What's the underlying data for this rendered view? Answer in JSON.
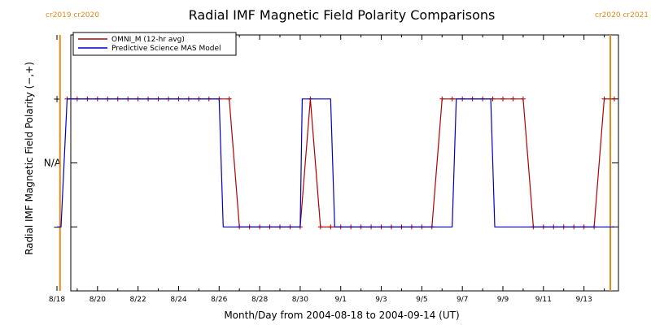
{
  "chart_data": {
    "type": "line",
    "title": "Radial IMF Magnetic Field Polarity Comparisons",
    "xlabel": "Month/Day from 2004-08-18 to 2004-09-14 (UT)",
    "ylabel": "Radial IMF Magnetic Field Polarity (−,+)",
    "x_ticks": [
      "8/18",
      "8/20",
      "8/22",
      "8/24",
      "8/26",
      "8/28",
      "8/30",
      "9/1",
      "9/3",
      "9/5",
      "9/7",
      "9/9",
      "9/11",
      "9/13"
    ],
    "xlim_days": [
      0,
      27.5
    ],
    "y_ticks": [
      "+",
      "N/A",
      "−"
    ],
    "ylim": [
      -1,
      1
    ],
    "y_tick_values": [
      0.5,
      0,
      -0.5
    ],
    "carrington_markers": [
      {
        "day": 0.15,
        "label": "cr2019 cr2020",
        "side": "left"
      },
      {
        "day": 27.3,
        "label": "cr2020 cr2021",
        "side": "right"
      }
    ],
    "legend": {
      "position": "top-left"
    },
    "series": [
      {
        "name": "OMNI_M (12-hr avg)",
        "color": "#b00000",
        "marker": "+",
        "points": [
          [
            0.5,
            0.5
          ],
          [
            1.0,
            0.5
          ],
          [
            1.5,
            0.5
          ],
          [
            2.0,
            0.5
          ],
          [
            2.5,
            0.5
          ],
          [
            3.0,
            0.5
          ],
          [
            3.5,
            0.5
          ],
          [
            4.0,
            0.5
          ],
          [
            4.5,
            0.5
          ],
          [
            5.0,
            0.5
          ],
          [
            5.5,
            0.5
          ],
          [
            6.0,
            0.5
          ],
          [
            6.5,
            0.5
          ],
          [
            7.0,
            0.5
          ],
          [
            7.5,
            0.5
          ],
          [
            8.0,
            0.5
          ],
          [
            8.5,
            0.5
          ],
          [
            9.0,
            -0.5
          ],
          [
            9.5,
            -0.5
          ],
          [
            10.0,
            -0.5
          ],
          [
            10.5,
            -0.5
          ],
          [
            11.0,
            -0.5
          ],
          [
            11.5,
            -0.5
          ],
          [
            12.0,
            -0.5
          ],
          [
            12.5,
            0.5
          ],
          [
            13.0,
            -0.5
          ],
          [
            13.5,
            -0.5
          ],
          [
            14.0,
            -0.5
          ],
          [
            14.5,
            -0.5
          ],
          [
            15.0,
            -0.5
          ],
          [
            15.5,
            -0.5
          ],
          [
            16.0,
            -0.5
          ],
          [
            16.5,
            -0.5
          ],
          [
            17.0,
            -0.5
          ],
          [
            17.5,
            -0.5
          ],
          [
            18.0,
            -0.5
          ],
          [
            18.5,
            -0.5
          ],
          [
            19.0,
            0.5
          ],
          [
            19.5,
            0.5
          ],
          [
            20.0,
            0.5
          ],
          [
            20.5,
            0.5
          ],
          [
            21.0,
            0.5
          ],
          [
            21.5,
            0.5
          ],
          [
            22.0,
            0.5
          ],
          [
            22.5,
            0.5
          ],
          [
            23.0,
            0.5
          ],
          [
            23.5,
            -0.5
          ],
          [
            24.0,
            -0.5
          ],
          [
            24.5,
            -0.5
          ],
          [
            25.0,
            -0.5
          ],
          [
            25.5,
            -0.5
          ],
          [
            26.0,
            -0.5
          ],
          [
            26.5,
            -0.5
          ],
          [
            27.0,
            0.5
          ],
          [
            27.5,
            0.5
          ]
        ]
      },
      {
        "name": "Predictive Science MAS Model",
        "color": "#0000c0",
        "marker": "none",
        "points": [
          [
            0.0,
            -0.5
          ],
          [
            0.2,
            -0.5
          ],
          [
            0.5,
            0.5
          ],
          [
            8.0,
            0.5
          ],
          [
            8.2,
            -0.5
          ],
          [
            12.0,
            -0.5
          ],
          [
            12.1,
            0.5
          ],
          [
            13.5,
            0.5
          ],
          [
            13.7,
            -0.5
          ],
          [
            19.5,
            -0.5
          ],
          [
            19.7,
            0.5
          ],
          [
            21.4,
            0.5
          ],
          [
            21.6,
            -0.5
          ],
          [
            27.5,
            -0.5
          ]
        ]
      }
    ]
  }
}
